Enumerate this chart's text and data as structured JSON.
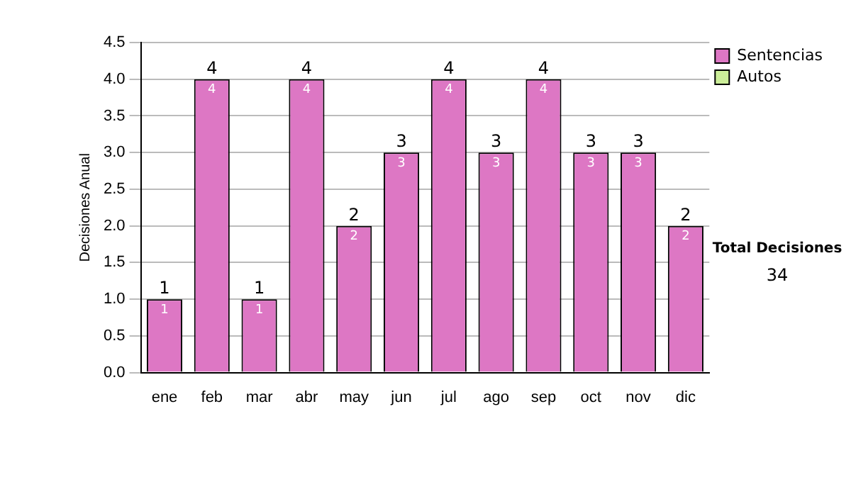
{
  "chart_data": {
    "type": "bar",
    "ylabel": "Decisiones Anual",
    "categories": [
      "ene",
      "feb",
      "mar",
      "abr",
      "may",
      "jun",
      "jul",
      "ago",
      "sep",
      "oct",
      "nov",
      "dic"
    ],
    "series": [
      {
        "name": "Sentencias",
        "color": "#dd77c4",
        "values": [
          1,
          4,
          1,
          4,
          2,
          3,
          4,
          3,
          4,
          3,
          3,
          2
        ],
        "value_labels": [
          "1",
          "4",
          "1",
          "4",
          "2",
          "3",
          "4",
          "3",
          "4",
          "3",
          "3",
          "2"
        ]
      },
      {
        "name": "Autos",
        "color": "#ccee99",
        "values": [
          0,
          0,
          0,
          0,
          0,
          0,
          0,
          0,
          0,
          0,
          0,
          0
        ],
        "value_labels": [
          null,
          null,
          null,
          null,
          null,
          null,
          null,
          null,
          null,
          null,
          null,
          null
        ]
      }
    ],
    "stacked": true,
    "totals": [
      "1",
      "4",
      "1",
      "4",
      "2",
      "3",
      "4",
      "3",
      "4",
      "3",
      "3",
      "2"
    ],
    "ylim": [
      0,
      4.5
    ],
    "yticks": [
      {
        "value": 0,
        "label": "0.0"
      },
      {
        "value": 0.5,
        "label": "0.5"
      },
      {
        "value": 1,
        "label": "1.0"
      },
      {
        "value": 1.5,
        "label": "1.5"
      },
      {
        "value": 2,
        "label": "2.0"
      },
      {
        "value": 2.5,
        "label": "2.5"
      },
      {
        "value": 3,
        "label": "3.0"
      },
      {
        "value": 3.5,
        "label": "3.5"
      },
      {
        "value": 4,
        "label": "4.0"
      },
      {
        "value": 4.5,
        "label": "4.5"
      }
    ],
    "grid": "y",
    "legend": "right",
    "annotations": [
      "Total Decisiones",
      "34"
    ]
  }
}
